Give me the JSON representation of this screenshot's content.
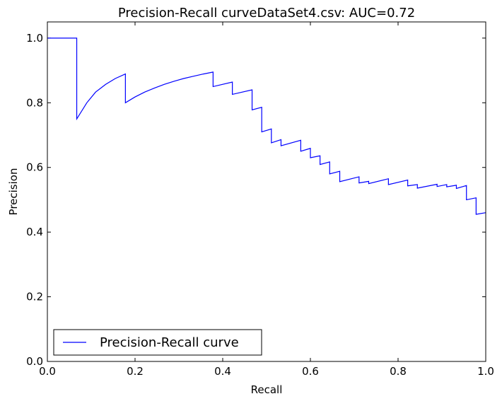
{
  "chart_data": {
    "type": "line",
    "title": "Precision-Recall curveDataSet4.csv: AUC=0.72",
    "xlabel": "Recall",
    "ylabel": "Precision",
    "xlim": [
      0.0,
      1.0
    ],
    "ylim": [
      0.0,
      1.05
    ],
    "xticks": [
      "0.0",
      "0.2",
      "0.4",
      "0.6",
      "0.8",
      "1.0"
    ],
    "yticks": [
      "0.0",
      "0.2",
      "0.4",
      "0.6",
      "0.8",
      "1.0"
    ],
    "grid": false,
    "legend_position": "lower-left",
    "series": [
      {
        "name": "Precision-Recall curve",
        "color": "#0000ff",
        "x": [
          0.0,
          0.067,
          0.067,
          0.09,
          0.11,
          0.133,
          0.155,
          0.178,
          0.178,
          0.2,
          0.222,
          0.245,
          0.267,
          0.29,
          0.311,
          0.333,
          0.356,
          0.378,
          0.378,
          0.422,
          0.422,
          0.467,
          0.467,
          0.489,
          0.489,
          0.511,
          0.511,
          0.533,
          0.533,
          0.578,
          0.578,
          0.6,
          0.6,
          0.622,
          0.622,
          0.644,
          0.644,
          0.667,
          0.667,
          0.711,
          0.711,
          0.733,
          0.733,
          0.778,
          0.778,
          0.822,
          0.822,
          0.844,
          0.844,
          0.889,
          0.889,
          0.911,
          0.911,
          0.933,
          0.933,
          0.956,
          0.956,
          0.978,
          0.978,
          1.0
        ],
        "y": [
          1.0,
          1.0,
          0.75,
          0.8,
          0.833,
          0.857,
          0.875,
          0.889,
          0.8,
          0.818,
          0.833,
          0.846,
          0.857,
          0.867,
          0.875,
          0.882,
          0.889,
          0.895,
          0.85,
          0.864,
          0.826,
          0.84,
          0.778,
          0.786,
          0.71,
          0.719,
          0.676,
          0.686,
          0.667,
          0.684,
          0.65,
          0.659,
          0.63,
          0.636,
          0.609,
          0.617,
          0.58,
          0.588,
          0.556,
          0.571,
          0.552,
          0.557,
          0.55,
          0.565,
          0.547,
          0.561,
          0.543,
          0.547,
          0.536,
          0.548,
          0.541,
          0.547,
          0.54,
          0.545,
          0.535,
          0.544,
          0.5,
          0.506,
          0.455,
          0.46
        ]
      }
    ]
  }
}
